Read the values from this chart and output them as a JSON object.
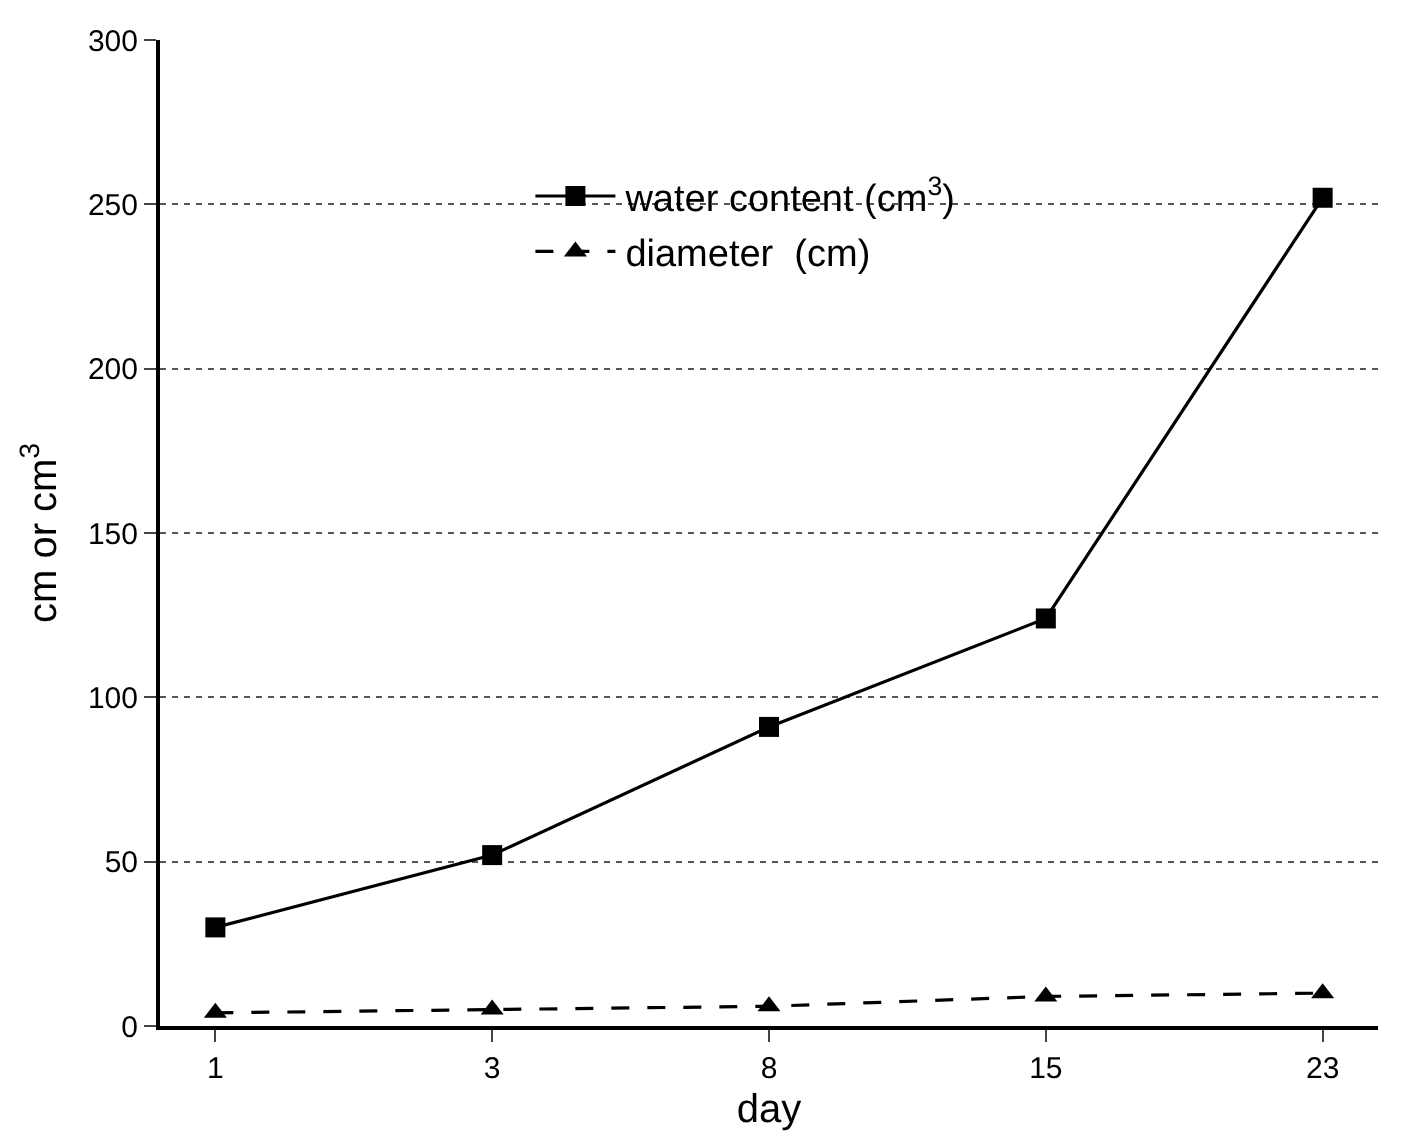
{
  "chart_data": {
    "type": "line",
    "xlabel": "day",
    "ylabel": "cm or cm$^{3}$",
    "categories": [
      "1",
      "3",
      "8",
      "15",
      "23"
    ],
    "series": [
      {
        "name": "water content (cm$^{3}$)",
        "color": "#000000",
        "values": [
          30,
          52,
          91,
          124,
          252
        ],
        "marker": "square",
        "line_style": "solid"
      },
      {
        "name": "diameter  (cm)",
        "color": "#000000",
        "values": [
          4,
          5,
          6,
          9,
          10
        ],
        "marker": "triangle",
        "line_style": "dashed"
      }
    ],
    "ylim": [
      0,
      300
    ],
    "yticks": [
      0,
      50,
      100,
      150,
      200,
      250,
      300
    ],
    "grid": "y",
    "legend": "top"
  }
}
